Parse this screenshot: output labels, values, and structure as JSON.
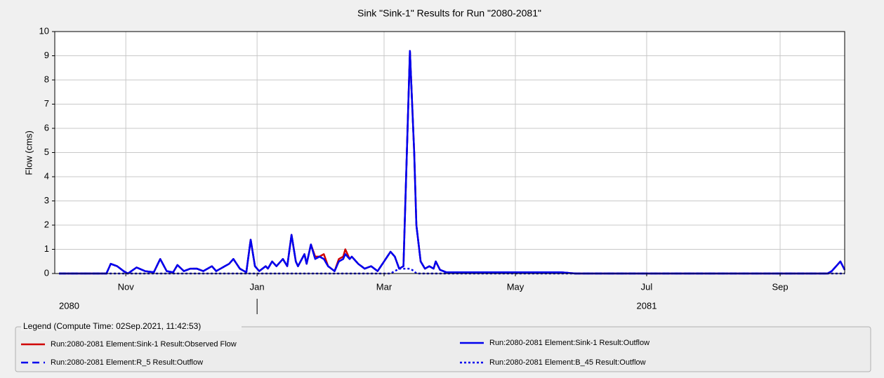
{
  "chart_data": {
    "type": "line",
    "title": "Sink \"Sink-1\" Results for Run \"2080-2081\"",
    "y_label": "Flow (cms)",
    "xlim": [
      -2,
      365
    ],
    "xticks": [
      {
        "value": 31,
        "label": "Nov"
      },
      {
        "value": 92,
        "label": "Jan"
      },
      {
        "value": 151,
        "label": "Mar"
      },
      {
        "value": 212,
        "label": "May"
      },
      {
        "value": 273,
        "label": "Jul"
      },
      {
        "value": 335,
        "label": "Sep"
      }
    ],
    "years": [
      "2080",
      "2081"
    ],
    "year_break": 92,
    "ylim": [
      0,
      10
    ],
    "yticks": [
      0,
      1,
      2,
      3,
      4,
      5,
      6,
      7,
      8,
      9,
      10
    ],
    "grid": true,
    "legend_title": "Legend (Compute Time: 02Sep.2021, 11:42:53)",
    "x": [
      0,
      22,
      24,
      27,
      30,
      32,
      36,
      40,
      44,
      47,
      50,
      53,
      55,
      58,
      61,
      64,
      67,
      71,
      73,
      77,
      79,
      81,
      84,
      87,
      89,
      91,
      93,
      96,
      97,
      99,
      101,
      104,
      106,
      108,
      110,
      111,
      114,
      115,
      117,
      119,
      121,
      123,
      125,
      128,
      130,
      132,
      133,
      135,
      136,
      139,
      142,
      145,
      148,
      151,
      154,
      156,
      158,
      160,
      163,
      165,
      166,
      168,
      170,
      172,
      174,
      175,
      177,
      180,
      233,
      240,
      357,
      359,
      363,
      365
    ],
    "series": [
      {
        "name": "Run:2080-2081 Element:Sink-1 Result:Observed Flow",
        "color": "#d00000",
        "dash": "solid",
        "values": [
          0,
          0,
          0.4,
          0.3,
          0.1,
          0,
          0.25,
          0.1,
          0.05,
          0.6,
          0.1,
          0.05,
          0.35,
          0.1,
          0.2,
          0.2,
          0.1,
          0.3,
          0.1,
          0.3,
          0.4,
          0.6,
          0.2,
          0.05,
          1.4,
          0.3,
          0.1,
          0.3,
          0.2,
          0.5,
          0.3,
          0.6,
          0.3,
          1.6,
          0.5,
          0.3,
          0.8,
          0.4,
          1.2,
          0.7,
          0.7,
          0.8,
          0.3,
          0.1,
          0.6,
          0.7,
          1.0,
          0.6,
          0.7,
          0.4,
          0.2,
          0.3,
          0.1,
          0.5,
          0.9,
          0.7,
          0.2,
          0.3,
          9.2,
          5,
          2,
          0.5,
          0.2,
          0.3,
          0.2,
          0.5,
          0.15,
          0.05,
          0.05,
          0,
          0,
          0.1,
          0.5,
          0.15
        ]
      },
      {
        "name": "Run:2080-2081 Element:Sink-1 Result:Outflow",
        "color": "#0000ee",
        "dash": "solid",
        "values": [
          0,
          0,
          0.4,
          0.3,
          0.1,
          0,
          0.25,
          0.1,
          0.05,
          0.6,
          0.1,
          0.05,
          0.35,
          0.1,
          0.2,
          0.2,
          0.1,
          0.3,
          0.1,
          0.3,
          0.4,
          0.6,
          0.2,
          0.05,
          1.4,
          0.3,
          0.1,
          0.3,
          0.2,
          0.5,
          0.3,
          0.6,
          0.3,
          1.6,
          0.5,
          0.3,
          0.8,
          0.4,
          1.2,
          0.6,
          0.7,
          0.6,
          0.3,
          0.1,
          0.5,
          0.6,
          0.8,
          0.6,
          0.7,
          0.4,
          0.2,
          0.3,
          0.1,
          0.5,
          0.9,
          0.7,
          0.2,
          0.3,
          9.2,
          5,
          2,
          0.5,
          0.2,
          0.3,
          0.2,
          0.5,
          0.15,
          0.05,
          0.05,
          0,
          0,
          0.1,
          0.5,
          0.15
        ]
      },
      {
        "name": "Run:2080-2081 Element:R_5 Result:Outflow",
        "color": "#0000ee",
        "dash": "dashed",
        "values": [
          0,
          0,
          0.4,
          0.3,
          0.1,
          0,
          0.25,
          0.1,
          0.05,
          0.6,
          0.1,
          0.05,
          0.35,
          0.1,
          0.2,
          0.2,
          0.1,
          0.3,
          0.1,
          0.3,
          0.4,
          0.6,
          0.2,
          0.05,
          1.4,
          0.3,
          0.1,
          0.3,
          0.2,
          0.5,
          0.3,
          0.6,
          0.3,
          1.6,
          0.5,
          0.3,
          0.8,
          0.4,
          1.2,
          0.6,
          0.7,
          0.6,
          0.3,
          0.1,
          0.5,
          0.6,
          0.8,
          0.6,
          0.7,
          0.4,
          0.2,
          0.3,
          0.1,
          0.5,
          0.9,
          0.7,
          0.2,
          0.3,
          9.2,
          5,
          2,
          0.5,
          0.2,
          0.3,
          0.2,
          0.5,
          0.15,
          0.05,
          0.05,
          0,
          0,
          0.1,
          0.5,
          0.15
        ]
      },
      {
        "name": "Run:2080-2081 Element:B_45 Result:Outflow",
        "color": "#0000ee",
        "dash": "dotted",
        "values": [
          0,
          0,
          0,
          0,
          0,
          0,
          0,
          0,
          0,
          0,
          0,
          0,
          0,
          0,
          0,
          0,
          0,
          0,
          0,
          0,
          0,
          0,
          0,
          0,
          0,
          0,
          0,
          0,
          0,
          0,
          0,
          0,
          0,
          0,
          0,
          0,
          0,
          0,
          0,
          0,
          0,
          0,
          0,
          0,
          0,
          0,
          0,
          0,
          0,
          0,
          0,
          0,
          0,
          0,
          0,
          0.1,
          0.2,
          0.2,
          0.2,
          0.1,
          0,
          0,
          0,
          0,
          0,
          0,
          0,
          0,
          0,
          0,
          0,
          0,
          0,
          0
        ]
      }
    ]
  }
}
